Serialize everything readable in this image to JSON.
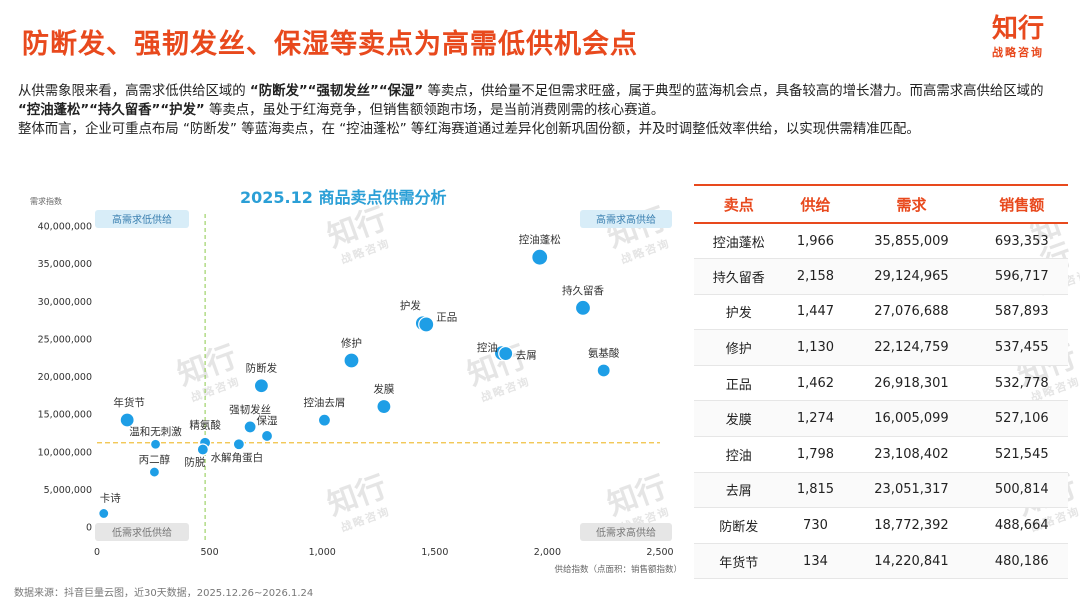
{
  "header": {
    "title": "防断发、强韧发丝、保湿等卖点为高需低供机会点",
    "logo_main": "知行",
    "logo_sub": "战略咨询"
  },
  "summary": {
    "p1_a": "从供需象限来看，高需求低供给区域的 ",
    "p1_b": "“防断发”“强韧发丝”“保湿”",
    "p1_c": " 等卖点，供给量不足但需求旺盛，属于典型的蓝海机会点，具备较高的增长潜力。而高需求高供给区域的 ",
    "p1_d": "“控油蓬松”“持久留香”“护发”",
    "p1_e": " 等卖点，虽处于红海竞争，但销售额领跑市场，是当前消费刚需的核心赛道。",
    "p2": "整体而言，企业可重点布局 “防断发” 等蓝海卖点，在 “控油蓬松” 等红海赛道通过差异化创新巩固份额，并及时调整低效率供给，以实现供需精准匹配。"
  },
  "watermark": {
    "main": "知行",
    "sub": "战略咨询"
  },
  "chart_data": {
    "type": "scatter",
    "title": "2025.12 商品卖点供需分析",
    "xlabel": "供给指数（点面积：销售额指数）",
    "ylabel": "需求指数",
    "xlim": [
      0,
      2500
    ],
    "ylim": [
      0,
      40000000
    ],
    "x_ticks": [
      "0",
      "500",
      "1,000",
      "1,500",
      "2,000",
      "2,500"
    ],
    "y_ticks": [
      "0",
      "5,000,000",
      "10,000,000",
      "15,000,000",
      "20,000,000",
      "25,000,000",
      "30,000,000",
      "35,000,000",
      "40,000,000"
    ],
    "x_ref": 480,
    "y_ref": 11200000,
    "quadrants": {
      "top_left": "高需求低供给",
      "top_right": "高需求高供给",
      "bottom_left": "低需求低供给",
      "bottom_right": "低需求高供给"
    },
    "points": [
      {
        "label": "控油蓬松",
        "x": 1966,
        "y": 35855009,
        "r": 8
      },
      {
        "label": "持久留香",
        "x": 2158,
        "y": 29124965,
        "r": 7.5
      },
      {
        "label": "护发",
        "x": 1447,
        "y": 27076688,
        "r": 7.5
      },
      {
        "label": "正品",
        "x": 1462,
        "y": 26918301,
        "r": 7.5
      },
      {
        "label": "修护",
        "x": 1130,
        "y": 22124759,
        "r": 7.5
      },
      {
        "label": "控油",
        "x": 1798,
        "y": 23108402,
        "r": 7.5
      },
      {
        "label": "去屑",
        "x": 1815,
        "y": 23051317,
        "r": 7
      },
      {
        "label": "氨基酸",
        "x": 2250,
        "y": 20800000,
        "r": 6.5
      },
      {
        "label": "防断发",
        "x": 730,
        "y": 18772392,
        "r": 7
      },
      {
        "label": "发膜",
        "x": 1274,
        "y": 16005099,
        "r": 7
      },
      {
        "label": "控油去屑",
        "x": 1010,
        "y": 14200000,
        "r": 6
      },
      {
        "label": "年货节",
        "x": 134,
        "y": 14220841,
        "r": 7
      },
      {
        "label": "强韧发丝",
        "x": 680,
        "y": 13300000,
        "r": 6
      },
      {
        "label": "保湿",
        "x": 755,
        "y": 12100000,
        "r": 5.5
      },
      {
        "label": "精氨酸",
        "x": 480,
        "y": 11200000,
        "r": 5.5
      },
      {
        "label": "温和无刺激",
        "x": 260,
        "y": 11000000,
        "r": 5
      },
      {
        "label": "水解角蛋白",
        "x": 630,
        "y": 11000000,
        "r": 5.5
      },
      {
        "label": "防脱",
        "x": 470,
        "y": 10300000,
        "r": 5.5
      },
      {
        "label": "丙二醇",
        "x": 255,
        "y": 7300000,
        "r": 5
      },
      {
        "label": "卡诗",
        "x": 30,
        "y": 1800000,
        "r": 5
      }
    ]
  },
  "table": {
    "headers": [
      "卖点",
      "供给",
      "需求",
      "销售额"
    ],
    "rows": [
      [
        "控油蓬松",
        "1,966",
        "35,855,009",
        "693,353"
      ],
      [
        "持久留香",
        "2,158",
        "29,124,965",
        "596,717"
      ],
      [
        "护发",
        "1,447",
        "27,076,688",
        "587,893"
      ],
      [
        "修护",
        "1,130",
        "22,124,759",
        "537,455"
      ],
      [
        "正品",
        "1,462",
        "26,918,301",
        "532,778"
      ],
      [
        "发膜",
        "1,274",
        "16,005,099",
        "527,106"
      ],
      [
        "控油",
        "1,798",
        "23,108,402",
        "521,545"
      ],
      [
        "去屑",
        "1,815",
        "23,051,317",
        "500,814"
      ],
      [
        "防断发",
        "730",
        "18,772,392",
        "488,664"
      ],
      [
        "年货节",
        "134",
        "14,220,841",
        "480,186"
      ]
    ]
  },
  "footer": {
    "source": "数据来源：抖音巨量云图，近30天数据，2025.12.26~2026.1.24"
  },
  "colors": {
    "accent": "#e8491d",
    "point": "#1e9ee6",
    "title_blue": "#2b9fd6",
    "quad_high": "#d8edf8",
    "quad_low": "#e6e6e6"
  }
}
